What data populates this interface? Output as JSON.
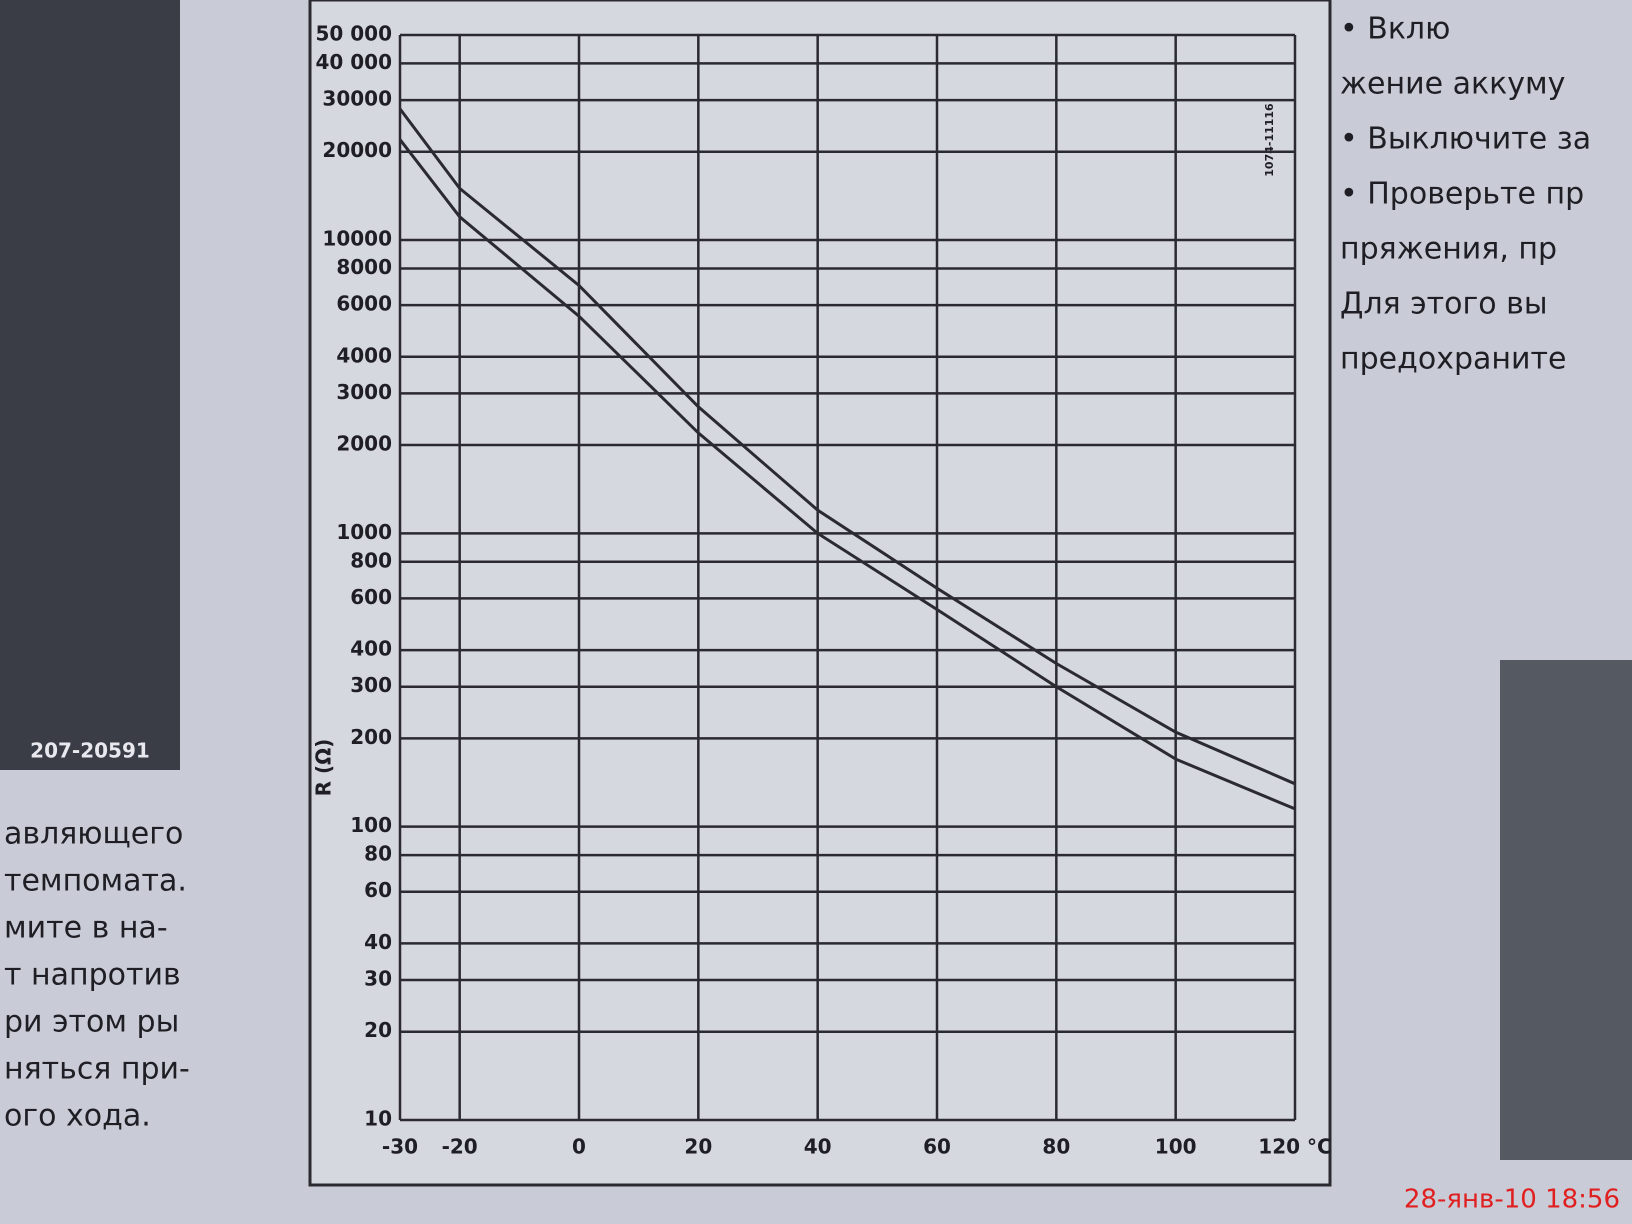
{
  "chart_data": {
    "type": "line",
    "y_label": "R (Ω)",
    "x": [
      -30,
      -20,
      0,
      20,
      40,
      60,
      80,
      100,
      120
    ],
    "series": [
      {
        "color": "#2a2a30",
        "values": [
          28000,
          15000,
          7000,
          2700,
          1200,
          650,
          360,
          210,
          140
        ]
      },
      {
        "color": "#2a2a30",
        "values": [
          22000,
          12000,
          5500,
          2200,
          1000,
          550,
          300,
          170,
          115
        ]
      }
    ],
    "xlim": [
      -30,
      120
    ],
    "xticks": [
      -30,
      -20,
      0,
      20,
      40,
      60,
      80,
      100,
      {
        "value": 120,
        "label": "120 °C"
      }
    ],
    "ylim": [
      10,
      50000
    ],
    "yscale": "log",
    "yticks": [
      10,
      20,
      30,
      40,
      60,
      80,
      100,
      200,
      300,
      400,
      600,
      800,
      1000,
      2000,
      3000,
      4000,
      6000,
      8000,
      10000,
      20000,
      30000,
      {
        "value": 40000,
        "label": "40 000"
      },
      {
        "value": 50000,
        "label": "50 000"
      }
    ],
    "grid": true
  },
  "figure_code": "207-20591",
  "side_code": "1074-11116",
  "left_column": [
    "авляющего",
    "темпомата.",
    "мите в на-",
    "т  напротив",
    "ри этом ры",
    "няться при-",
    "ого хода."
  ],
  "right_column": [
    "• Вклю",
    "жение аккуму",
    "• Выключите за",
    "• Проверьте пр",
    "пряжения,  пр",
    "Для этого вы",
    "предохраните"
  ],
  "timestamp": "28-янв-10 18:56"
}
